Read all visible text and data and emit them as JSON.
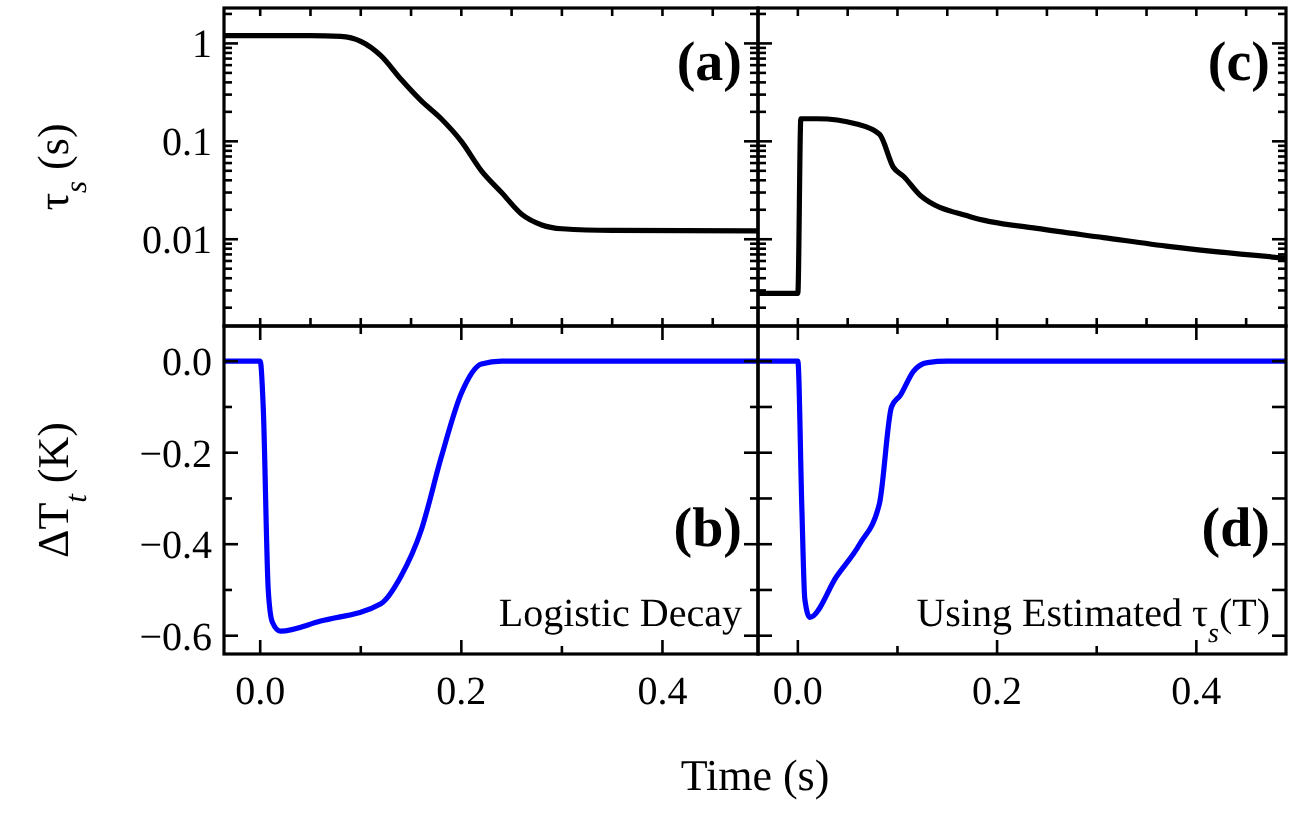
{
  "chart_data": [
    {
      "type": "line",
      "ylabel": "τ$_{s}$ (s)",
      "log": true,
      "color": "#000000",
      "tick_labels": "y",
      "annotations": [
        "(a)"
      ],
      "x": [
        -0.036,
        0.05,
        0.08,
        0.1,
        0.12,
        0.14,
        0.16,
        0.18,
        0.2,
        0.22,
        0.24,
        0.26,
        0.28,
        0.3,
        0.35,
        0.495
      ],
      "values": [
        1.2,
        1.2,
        1.18,
        1.05,
        0.75,
        0.43,
        0.26,
        0.17,
        0.1,
        0.05,
        0.03,
        0.018,
        0.014,
        0.0128,
        0.0123,
        0.0122
      ],
      "xlim": [
        -0.036,
        0.495
      ],
      "ylim": [
        0.0013,
        2.3
      ],
      "xticks": [
        {
          "value": 0,
          "label": null
        },
        {
          "value": 0.05,
          "label": null
        },
        {
          "value": 0.1,
          "label": null
        },
        {
          "value": 0.15,
          "label": null
        },
        {
          "value": 0.2,
          "label": null
        },
        {
          "value": 0.25,
          "label": null
        },
        {
          "value": 0.3,
          "label": null
        },
        {
          "value": 0.35,
          "label": null
        },
        {
          "value": 0.4,
          "label": null
        },
        {
          "value": 0.45,
          "label": null
        }
      ],
      "yticks": [
        {
          "value": 0.002,
          "label": null
        },
        {
          "value": 0.003,
          "label": null
        },
        {
          "value": 0.004,
          "label": null
        },
        {
          "value": 0.005,
          "label": null
        },
        {
          "value": 0.006,
          "label": null
        },
        {
          "value": 0.007,
          "label": null
        },
        {
          "value": 0.008,
          "label": null
        },
        {
          "value": 0.009,
          "label": null
        },
        0.01,
        {
          "value": 0.02,
          "label": null
        },
        {
          "value": 0.03,
          "label": null
        },
        {
          "value": 0.04,
          "label": null
        },
        {
          "value": 0.05,
          "label": null
        },
        {
          "value": 0.06,
          "label": null
        },
        {
          "value": 0.07,
          "label": null
        },
        {
          "value": 0.08,
          "label": null
        },
        {
          "value": 0.09,
          "label": null
        },
        0.1,
        {
          "value": 0.2,
          "label": null
        },
        {
          "value": 0.3,
          "label": null
        },
        {
          "value": 0.4,
          "label": null
        },
        {
          "value": 0.5,
          "label": null
        },
        {
          "value": 0.6,
          "label": null
        },
        {
          "value": 0.7,
          "label": null
        },
        {
          "value": 0.8,
          "label": null
        },
        {
          "value": 0.9,
          "label": null
        },
        1,
        {
          "value": 2,
          "label": null
        }
      ]
    },
    {
      "type": "line",
      "log": true,
      "color": "#000000",
      "tick_labels": false,
      "annotations": [
        "(c)"
      ],
      "x": [
        -0.04,
        0.0,
        0.003,
        0.02,
        0.059,
        0.082,
        0.096,
        0.106,
        0.123,
        0.173,
        0.24,
        0.307,
        0.374,
        0.49
      ],
      "values": [
        0.0028,
        0.0028,
        0.17,
        0.17,
        0.15,
        0.118,
        0.054,
        0.044,
        0.028,
        0.017,
        0.0129,
        0.0104,
        0.0084,
        0.0064
      ],
      "xlim": [
        -0.04,
        0.49
      ],
      "ylim": [
        0.0013,
        2.3
      ],
      "xticks": [
        {
          "value": 0,
          "label": null
        },
        {
          "value": 0.05,
          "label": null
        },
        {
          "value": 0.1,
          "label": null
        },
        {
          "value": 0.15,
          "label": null
        },
        {
          "value": 0.2,
          "label": null
        },
        {
          "value": 0.25,
          "label": null
        },
        {
          "value": 0.3,
          "label": null
        },
        {
          "value": 0.35,
          "label": null
        },
        {
          "value": 0.4,
          "label": null
        },
        {
          "value": 0.45,
          "label": null
        }
      ],
      "yticks": [
        0.002,
        0.003,
        0.004,
        0.005,
        0.006,
        0.007,
        0.008,
        0.009,
        0.01,
        0.02,
        0.03,
        0.04,
        0.05,
        0.06,
        0.07,
        0.08,
        0.09,
        0.1,
        0.2,
        0.3,
        0.4,
        0.5,
        0.6,
        0.7,
        0.8,
        0.9,
        1,
        2
      ]
    },
    {
      "type": "line",
      "ylabel": "ΔT$_{t}$ (K)",
      "xlabel": "Time (s)",
      "color": "#0000ff",
      "annotations": [
        "(b)",
        "Logistic Decay"
      ],
      "x": [
        -0.036,
        0.0,
        0.003,
        0.008,
        0.012,
        0.02,
        0.06,
        0.12,
        0.14,
        0.16,
        0.18,
        0.2,
        0.22,
        0.24,
        0.495
      ],
      "values": [
        0,
        0,
        -0.1,
        -0.5,
        -0.57,
        -0.59,
        -0.568,
        -0.53,
        -0.47,
        -0.37,
        -0.21,
        -0.07,
        -0.006,
        0,
        0
      ],
      "xlim": [
        -0.036,
        0.495
      ],
      "ylim": [
        -0.64,
        0.077
      ],
      "xticks": [
        {
          "value": 0,
          "label": "0.0"
        },
        {
          "value": 0.1,
          "label": null
        },
        {
          "value": 0.2,
          "label": "0.2"
        },
        {
          "value": 0.3,
          "label": null
        },
        {
          "value": 0.4,
          "label": "0.4"
        }
      ],
      "yticks": [
        {
          "value": -0.6,
          "label": "−0.6"
        },
        {
          "value": -0.5,
          "label": null
        },
        {
          "value": -0.4,
          "label": "−0.4"
        },
        {
          "value": -0.3,
          "label": null
        },
        {
          "value": -0.2,
          "label": "−0.2"
        },
        {
          "value": -0.1,
          "label": null
        },
        {
          "value": 0,
          "label": "0.0"
        }
      ]
    },
    {
      "type": "line",
      "color": "#0000ff",
      "tick_labels": "x",
      "annotations": [
        "(d)",
        "Using Estimated τ$_{s}$(T)"
      ],
      "x": [
        -0.04,
        0.0,
        0.004,
        0.007,
        0.012,
        0.039,
        0.062,
        0.082,
        0.094,
        0.103,
        0.116,
        0.13,
        0.15,
        0.49
      ],
      "values": [
        0,
        0,
        -0.32,
        -0.52,
        -0.56,
        -0.47,
        -0.4,
        -0.31,
        -0.1,
        -0.074,
        -0.022,
        -0.003,
        0,
        0
      ],
      "xlim": [
        -0.04,
        0.49
      ],
      "ylim": [
        -0.64,
        0.077
      ],
      "xticks": [
        {
          "value": 0,
          "label": "0.0"
        },
        {
          "value": 0.1,
          "label": null
        },
        {
          "value": 0.2,
          "label": "0.2"
        },
        {
          "value": 0.3,
          "label": null
        },
        {
          "value": 0.4,
          "label": "0.4"
        }
      ],
      "yticks": [
        -0.6,
        -0.5,
        -0.4,
        -0.3,
        -0.2,
        -0.1,
        0
      ]
    }
  ]
}
